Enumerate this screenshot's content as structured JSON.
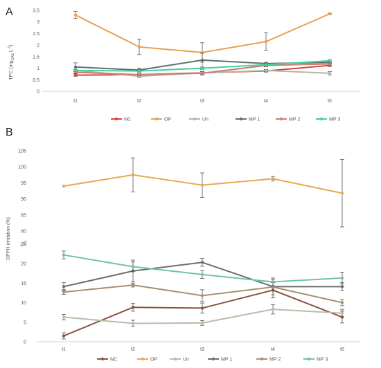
{
  "chart_data": [
    {
      "type": "line",
      "panel": "A",
      "title": "",
      "ylabel": "TPC (mg_GAE L^-1)",
      "ylabel_main": "TPC (mg",
      "ylabel_sub": "GAE",
      "ylabel_unit": " L",
      "ylabel_sup": "-1",
      "ylabel_close": ")",
      "xlabel": "",
      "categories": [
        "t1",
        "t2",
        "t3",
        "t4",
        "t5"
      ],
      "ylim": [
        0,
        3.5
      ],
      "yticks": [
        "0",
        "0.5",
        "1",
        "1.5",
        "2",
        "2.5",
        "3",
        "3.5"
      ],
      "ytick_values": [
        0,
        0.5,
        1,
        1.5,
        2,
        2.5,
        3,
        3.5
      ],
      "grid": false,
      "legend": "bottom",
      "series": [
        {
          "name": "NC",
          "color": "#d94040",
          "values": [
            0.7,
            0.72,
            0.8,
            0.88,
            1.12
          ],
          "errors": [
            0.05,
            0.05,
            0.05,
            0.05,
            0.05
          ]
        },
        {
          "name": "OP",
          "color": "#e8a050",
          "values": [
            3.3,
            1.92,
            1.68,
            2.15,
            3.35
          ],
          "errors": [
            0.15,
            0.33,
            0.42,
            0.38,
            0.03
          ]
        },
        {
          "name": "Un",
          "color": "#b0b8a0",
          "values": [
            0.9,
            0.65,
            0.8,
            0.9,
            0.78
          ],
          "errors": [
            0.05,
            0.06,
            0.06,
            0.05,
            0.07
          ]
        },
        {
          "name": "MP 1",
          "color": "#607068",
          "values": [
            1.05,
            0.92,
            1.35,
            1.2,
            1.25
          ],
          "errors": [
            0.18,
            0.08,
            0.3,
            0.05,
            0.05
          ]
        },
        {
          "name": "MP 2",
          "color": "#c88070",
          "values": [
            0.82,
            0.72,
            0.78,
            1.12,
            1.18
          ],
          "errors": [
            0.05,
            0.05,
            0.08,
            0.06,
            0.05
          ]
        },
        {
          "name": "MP 3",
          "color": "#40d0a0",
          "values": [
            0.9,
            0.88,
            1.0,
            1.15,
            1.32
          ],
          "errors": [
            0.05,
            0.05,
            0.05,
            0.05,
            0.05
          ]
        }
      ]
    },
    {
      "type": "line",
      "panel": "B",
      "title": "",
      "ylabel": "DPPH inhibition (%)",
      "xlabel": "",
      "categories": [
        "t1",
        "t2",
        "t3",
        "t4",
        "t5"
      ],
      "ylim": [
        0,
        105
      ],
      "axis_break": [
        25,
        75
      ],
      "yticks_lower": [
        "0",
        "5",
        "10",
        "15",
        "20",
        "25"
      ],
      "ytick_values_lower": [
        0,
        5,
        10,
        15,
        20,
        25
      ],
      "yticks_upper": [
        "80",
        "85",
        "90",
        "95",
        "100",
        "105"
      ],
      "ytick_values_upper": [
        80,
        85,
        90,
        95,
        100,
        105
      ],
      "grid": false,
      "legend": "bottom",
      "series": [
        {
          "name": "NC",
          "color": "#8a5040",
          "values": [
            1.5,
            8.8,
            8.6,
            13.2,
            6.3
          ],
          "errors": [
            0.8,
            1.0,
            1.3,
            2.0,
            1.5
          ]
        },
        {
          "name": "OP",
          "color": "#e8a850",
          "values": [
            94.0,
            97.5,
            94.3,
            96.3,
            91.8
          ],
          "errors": [
            0.0,
            5.3,
            3.8,
            0.7,
            10.5
          ]
        },
        {
          "name": "Un",
          "color": "#b8bca8",
          "values": [
            6.3,
            4.7,
            4.8,
            8.3,
            7.3
          ],
          "errors": [
            0.7,
            0.8,
            0.6,
            1.2,
            1.0
          ]
        },
        {
          "name": "MP 1",
          "color": "#687068",
          "values": [
            14.1,
            18.1,
            20.3,
            14.1,
            14.1
          ],
          "errors": [
            1.0,
            2.8,
            1.0,
            1.0,
            1.0
          ]
        },
        {
          "name": "MP 2",
          "color": "#a89070",
          "values": [
            12.7,
            14.5,
            11.8,
            14.0,
            10.0
          ],
          "errors": [
            0.6,
            0.5,
            1.5,
            2.0,
            0.8
          ]
        },
        {
          "name": "MP 3",
          "color": "#70c0b0",
          "values": [
            22.2,
            19.2,
            17.2,
            15.3,
            16.3
          ],
          "errors": [
            1.0,
            1.2,
            1.0,
            1.0,
            1.5
          ]
        }
      ]
    }
  ]
}
